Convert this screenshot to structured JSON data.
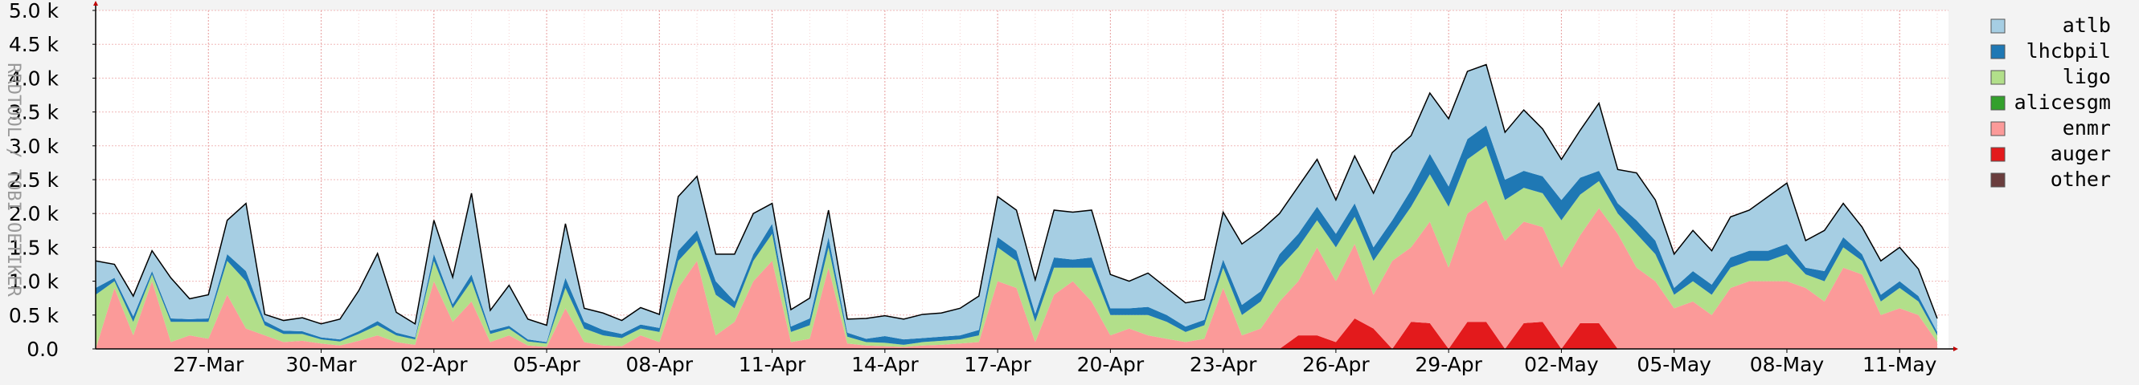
{
  "chart_data": {
    "type": "area",
    "stacked": true,
    "ylabel": "RRDTOOL / TOBI OETIKER",
    "ylim": [
      0,
      5000
    ],
    "yticks": [
      "0.0",
      "0.5 k",
      "1.0 k",
      "1.5 k",
      "2.0 k",
      "2.5 k",
      "3.0 k",
      "3.5 k",
      "4.0 k",
      "4.5 k",
      "5.0 k"
    ],
    "yticks_values": [
      0,
      500,
      1000,
      1500,
      2000,
      2500,
      3000,
      3500,
      4000,
      4500,
      5000
    ],
    "x_range_days": [
      0,
      59
    ],
    "xticks": [
      "27-Mar",
      "30-Mar",
      "02-Apr",
      "05-Apr",
      "08-Apr",
      "11-Apr",
      "14-Apr",
      "17-Apr",
      "20-Apr",
      "23-Apr",
      "26-Apr",
      "29-Apr",
      "02-May",
      "05-May",
      "08-May",
      "11-May"
    ],
    "xticks_days": [
      3,
      6,
      9,
      12,
      15,
      18,
      21,
      24,
      27,
      30,
      33,
      36,
      39,
      42,
      45,
      48
    ],
    "grid": true,
    "legend_position": "right",
    "legend": [
      {
        "name": "atlb",
        "color": "#a6cee3"
      },
      {
        "name": "lhcbpil",
        "color": "#1f78b4"
      },
      {
        "name": "ligo",
        "color": "#b2df8a"
      },
      {
        "name": "alicesgm",
        "color": "#33a02c"
      },
      {
        "name": "enmr",
        "color": "#fb9a99"
      },
      {
        "name": "auger",
        "color": "#e31a1c"
      },
      {
        "name": "other",
        "color": "#6a3d3d"
      }
    ],
    "x": [
      0,
      0.5,
      1,
      1.5,
      2,
      2.5,
      3,
      3.5,
      4,
      4.5,
      5,
      5.5,
      6,
      6.5,
      7,
      7.5,
      8,
      8.5,
      9,
      9.5,
      10,
      10.5,
      11,
      11.5,
      12,
      12.5,
      13,
      13.5,
      14,
      14.5,
      15,
      15.5,
      16,
      16.5,
      17,
      17.5,
      18,
      18.5,
      19,
      19.5,
      20,
      20.5,
      21,
      21.5,
      22,
      22.5,
      23,
      23.5,
      24,
      24.5,
      25,
      25.5,
      26,
      26.5,
      27,
      27.5,
      28,
      28.5,
      29,
      29.5,
      30,
      30.5,
      31,
      31.5,
      32,
      32.5,
      33,
      33.5,
      34,
      34.5,
      35,
      35.5,
      36,
      36.5,
      37,
      37.5,
      38,
      38.5,
      39,
      39.5,
      40,
      40.5,
      41,
      41.5,
      42,
      42.5,
      43,
      43.5,
      44,
      44.5,
      45,
      45.5,
      46,
      46.5,
      47,
      47.5,
      48,
      48.5,
      49
    ],
    "series": [
      {
        "name": "other",
        "values": [
          0,
          0,
          0,
          0,
          0,
          0,
          0,
          0,
          0,
          0,
          0,
          0,
          0,
          0,
          0,
          0,
          0,
          0,
          0,
          0,
          0,
          0,
          0,
          0,
          0,
          0,
          0,
          0,
          0,
          0,
          0,
          0,
          0,
          0,
          0,
          0,
          0,
          0,
          0,
          0,
          0,
          0,
          0,
          0,
          0,
          0,
          0,
          0,
          0,
          0,
          0,
          0,
          0,
          0,
          0,
          0,
          0,
          0,
          0,
          0,
          0,
          0,
          0,
          0,
          0,
          0,
          0,
          0,
          0,
          0,
          0,
          0,
          0,
          0,
          0,
          0,
          0,
          0,
          0,
          0,
          0,
          0,
          0,
          0,
          0,
          0,
          0,
          0,
          0,
          0,
          0,
          0,
          0,
          0,
          0,
          0,
          0,
          0,
          0
        ]
      },
      {
        "name": "auger",
        "values": [
          0,
          0,
          0,
          0,
          0,
          0,
          0,
          0,
          0,
          0,
          0,
          0,
          0,
          0,
          0,
          0,
          0,
          0,
          0,
          0,
          0,
          0,
          0,
          0,
          0,
          0,
          0,
          0,
          0,
          0,
          0,
          0,
          0,
          0,
          0,
          0,
          0,
          0,
          0,
          0,
          0,
          0,
          0,
          0,
          0,
          0,
          0,
          0,
          0,
          0,
          0,
          0,
          0,
          0,
          0,
          0,
          0,
          0,
          0,
          0,
          0,
          0,
          0,
          0,
          200,
          200,
          100,
          450,
          300,
          0,
          400,
          380,
          0,
          400,
          400,
          0,
          380,
          400,
          0,
          380,
          380,
          0,
          0,
          0,
          0,
          0,
          0,
          0,
          0,
          0,
          0,
          0,
          0,
          0,
          0,
          0,
          0,
          0,
          0
        ]
      },
      {
        "name": "enmr",
        "values": [
          0,
          900,
          200,
          1000,
          100,
          200,
          150,
          800,
          300,
          200,
          100,
          120,
          80,
          50,
          120,
          200,
          100,
          60,
          1000,
          400,
          700,
          100,
          200,
          50,
          30,
          600,
          100,
          50,
          40,
          200,
          100,
          900,
          1300,
          200,
          400,
          1000,
          1300,
          100,
          150,
          1200,
          80,
          50,
          40,
          30,
          50,
          60,
          80,
          100,
          1000,
          900,
          100,
          800,
          1000,
          700,
          200,
          300,
          200,
          150,
          100,
          150,
          900,
          200,
          300,
          700,
          800,
          1300,
          900,
          1100,
          500,
          1300,
          1100,
          1500,
          1200,
          1600,
          1800,
          1600,
          1500,
          1400,
          1200,
          1300,
          1700,
          1700,
          1200,
          1000,
          600,
          700,
          500,
          900,
          1000,
          1000,
          1000,
          900,
          700,
          1200,
          1100,
          500,
          600,
          500,
          100
        ]
      },
      {
        "name": "alicesgm",
        "values": [
          0,
          0,
          0,
          0,
          0,
          0,
          0,
          0,
          0,
          0,
          0,
          0,
          0,
          0,
          0,
          0,
          0,
          0,
          0,
          0,
          0,
          0,
          0,
          0,
          0,
          0,
          0,
          0,
          0,
          0,
          0,
          0,
          0,
          0,
          0,
          0,
          0,
          0,
          0,
          0,
          0,
          0,
          0,
          0,
          0,
          0,
          0,
          0,
          0,
          0,
          0,
          0,
          0,
          0,
          0,
          0,
          0,
          0,
          0,
          0,
          0,
          0,
          0,
          0,
          0,
          0,
          0,
          0,
          0,
          0,
          0,
          0,
          0,
          0,
          0,
          0,
          0,
          0,
          0,
          0,
          0,
          0,
          0,
          0,
          0,
          0,
          0,
          0,
          0,
          0,
          0,
          0,
          0,
          0,
          0,
          0,
          0,
          0,
          0
        ]
      },
      {
        "name": "ligo",
        "values": [
          800,
          100,
          200,
          100,
          300,
          200,
          250,
          500,
          700,
          150,
          120,
          100,
          60,
          60,
          100,
          150,
          100,
          80,
          300,
          200,
          300,
          120,
          100,
          60,
          50,
          300,
          200,
          150,
          120,
          100,
          150,
          400,
          300,
          600,
          200,
          300,
          400,
          150,
          200,
          300,
          100,
          50,
          50,
          30,
          50,
          60,
          60,
          100,
          500,
          400,
          300,
          400,
          200,
          500,
          300,
          200,
          300,
          250,
          150,
          200,
          300,
          300,
          400,
          500,
          500,
          400,
          500,
          400,
          500,
          400,
          600,
          700,
          900,
          800,
          800,
          600,
          500,
          500,
          700,
          600,
          400,
          300,
          500,
          400,
          200,
          300,
          300,
          300,
          300,
          300,
          400,
          200,
          300,
          300,
          200,
          200,
          300,
          200,
          100
        ]
      },
      {
        "name": "lhcbpil",
        "values": [
          100,
          50,
          80,
          50,
          50,
          40,
          50,
          100,
          150,
          60,
          50,
          40,
          30,
          30,
          40,
          60,
          40,
          30,
          100,
          60,
          100,
          50,
          40,
          30,
          20,
          150,
          100,
          80,
          60,
          60,
          60,
          150,
          150,
          200,
          100,
          100,
          150,
          80,
          100,
          150,
          60,
          50,
          100,
          80,
          60,
          60,
          60,
          80,
          150,
          150,
          120,
          150,
          120,
          150,
          100,
          100,
          120,
          100,
          80,
          80,
          120,
          150,
          150,
          200,
          200,
          200,
          200,
          200,
          200,
          200,
          250,
          300,
          300,
          300,
          300,
          300,
          250,
          250,
          300,
          250,
          150,
          150,
          200,
          200,
          100,
          150,
          150,
          150,
          150,
          150,
          150,
          100,
          150,
          150,
          100,
          100,
          100,
          80,
          50
        ]
      },
      {
        "name": "atlb",
        "values": [
          400,
          200,
          300,
          300,
          600,
          300,
          350,
          500,
          1000,
          100,
          150,
          200,
          200,
          300,
          600,
          1000,
          300,
          200,
          500,
          400,
          1200,
          300,
          600,
          300,
          250,
          800,
          200,
          250,
          200,
          250,
          200,
          800,
          800,
          400,
          700,
          600,
          300,
          250,
          300,
          400,
          200,
          300,
          300,
          300,
          350,
          350,
          400,
          500,
          600,
          600,
          500,
          700,
          700,
          700,
          500,
          400,
          500,
          400,
          350,
          300,
          700,
          900,
          900,
          600,
          700,
          700,
          500,
          700,
          800,
          1000,
          800,
          900,
          1000,
          1000,
          900,
          700,
          900,
          700,
          600,
          700,
          1000,
          500,
          700,
          600,
          500,
          600,
          500,
          600,
          600,
          800,
          900,
          400,
          600,
          500,
          400,
          500,
          500,
          400,
          200
        ]
      }
    ]
  }
}
